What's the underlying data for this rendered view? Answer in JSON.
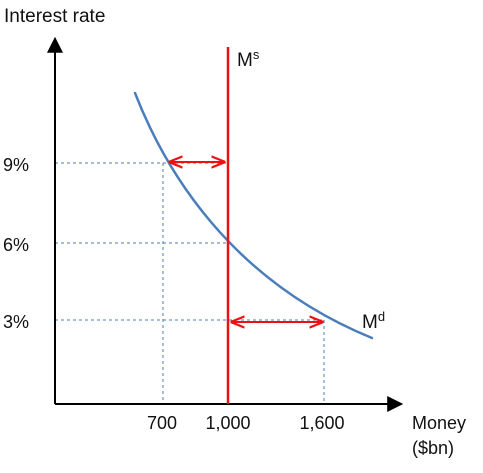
{
  "y_axis_label": "Interest rate",
  "x_axis_label_line1": "Money",
  "x_axis_label_line2": "($bn)",
  "y_ticks": [
    "9%",
    "6%",
    "3%"
  ],
  "x_ticks": [
    "700",
    "1,000",
    "1,600"
  ],
  "supply_label": {
    "main": "M",
    "sup": "s"
  },
  "demand_label": {
    "main": "M",
    "sup": "d"
  },
  "colors": {
    "demand_curve": "#4a7ebb",
    "supply_line": "#ee1111",
    "arrows": "#ee1111",
    "guides": "#4a7ebb",
    "axes": "#000000"
  },
  "chart_data": {
    "type": "line",
    "xlabel": "Money ($bn)",
    "ylabel": "Interest rate",
    "series": [
      {
        "name": "Md",
        "points": [
          {
            "x": 700,
            "y": 9
          },
          {
            "x": 1000,
            "y": 6
          },
          {
            "x": 1600,
            "y": 3
          }
        ]
      },
      {
        "name": "Ms",
        "points": [
          {
            "x": 1000,
            "y": 3
          },
          {
            "x": 1000,
            "y": 9
          }
        ]
      }
    ],
    "annotations": [
      {
        "type": "arrow",
        "from": {
          "x": 1000,
          "y": 9
        },
        "to": {
          "x": 700,
          "y": 9
        }
      },
      {
        "type": "arrow",
        "from": {
          "x": 700,
          "y": 9
        },
        "to": {
          "x": 1000,
          "y": 9
        }
      },
      {
        "type": "arrow",
        "from": {
          "x": 1000,
          "y": 3
        },
        "to": {
          "x": 1600,
          "y": 3
        }
      },
      {
        "type": "arrow",
        "from": {
          "x": 1600,
          "y": 3
        },
        "to": {
          "x": 1000,
          "y": 3
        }
      }
    ]
  }
}
